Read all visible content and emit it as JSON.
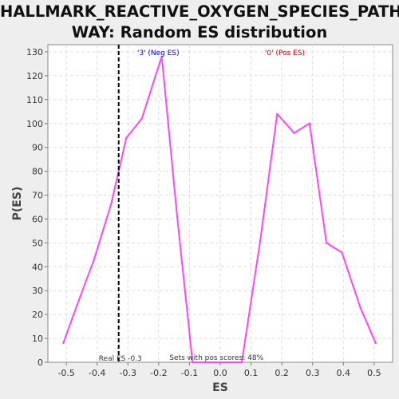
{
  "chart_data": {
    "type": "line",
    "title_lines": [
      "HALLMARK_REACTIVE_OXYGEN_SPECIES_PATH",
      "WAY: Random ES distribution"
    ],
    "xlabel": "ES",
    "ylabel": "P(ES)",
    "xlim": [
      -0.56,
      0.56
    ],
    "ylim": [
      0,
      133
    ],
    "xticks": [
      -0.5,
      -0.4,
      -0.3,
      -0.2,
      -0.1,
      0.0,
      0.1,
      0.2,
      0.3,
      0.4,
      0.5
    ],
    "xtick_labels": [
      "-0.5",
      "-0.4",
      "-0.3",
      "-0.2",
      "-0.1",
      "0.0",
      "0.1",
      "0.2",
      "0.3",
      "0.4",
      "0.5"
    ],
    "yticks": [
      0,
      10,
      20,
      30,
      40,
      50,
      60,
      70,
      80,
      90,
      100,
      110,
      120,
      130
    ],
    "grid": true,
    "series": [
      {
        "color": "#ff44ff",
        "x": [
          -0.51,
          -0.465,
          -0.41,
          -0.355,
          -0.305,
          -0.255,
          -0.19,
          -0.14,
          -0.09,
          -0.04,
          0.01,
          0.07,
          0.13,
          0.185,
          0.24,
          0.29,
          0.345,
          0.395,
          0.455,
          0.505
        ],
        "y": [
          8,
          24,
          43,
          66,
          94,
          102,
          128,
          61,
          0,
          0,
          0,
          0,
          51,
          104,
          96,
          100,
          50,
          46,
          23,
          8
        ]
      }
    ],
    "real_es": {
      "x": -0.33,
      "label": "Real ES -0.3"
    },
    "annotations": {
      "neg_label": "'3' (Neg ES)",
      "pos_label": "'0' (Pos ES)",
      "pos_scores": "Sets with pos scores: 48%"
    },
    "colors": {
      "neg_label": "#0000cc",
      "pos_label": "#cc0000",
      "line": "#ff44ff",
      "plot_bg": "#ffffff",
      "page_bg": "#eeeeee"
    }
  }
}
